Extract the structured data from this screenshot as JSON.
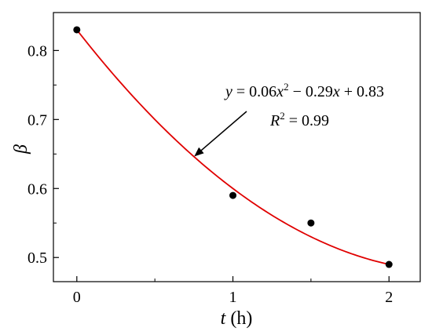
{
  "chart_data": {
    "type": "scatter",
    "xlabel_var": "t",
    "xlabel_unit": " (h)",
    "ylabel": "β",
    "xlim": [
      -0.15,
      2.2
    ],
    "ylim": [
      0.465,
      0.855
    ],
    "xticks": [
      0,
      1,
      2
    ],
    "xtick_labels": [
      "0",
      "1",
      "2"
    ],
    "yticks": [
      0.5,
      0.6,
      0.7,
      0.8
    ],
    "ytick_labels": [
      "0.5",
      "0.6",
      "0.7",
      "0.8"
    ],
    "grid": false,
    "points": [
      {
        "x": 0,
        "y": 0.83
      },
      {
        "x": 1,
        "y": 0.59
      },
      {
        "x": 1.5,
        "y": 0.55
      },
      {
        "x": 2,
        "y": 0.49
      }
    ],
    "fit": {
      "a": 0.06,
      "b": -0.29,
      "c": 0.83,
      "x_range": [
        0,
        2
      ],
      "color": "#e00000"
    },
    "marker_color": "#000000",
    "annotation": {
      "equation": {
        "y": "y",
        "eq1": " = 0.06",
        "x1": "x",
        "sup2": "2",
        "eq2": " − 0.29",
        "x2": "x",
        "eq3": " + 0.83"
      },
      "r2": {
        "R": "R",
        "sup2": "2",
        "value": " = 0.99"
      },
      "arrow_target": {
        "x": 0.76,
        "y": 0.648
      }
    }
  }
}
